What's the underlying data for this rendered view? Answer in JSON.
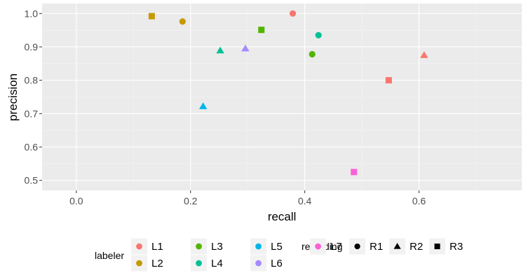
{
  "chart_data": {
    "type": "scatter",
    "title": "",
    "xlabel": "recall",
    "ylabel": "precision",
    "xlim": [
      -0.06,
      0.78
    ],
    "ylim": [
      0.47,
      1.03
    ],
    "xticks": [
      0.0,
      0.2,
      0.4,
      0.6
    ],
    "xtick_labels": [
      "0.0",
      "0.2",
      "0.4",
      "0.6"
    ],
    "yticks": [
      0.5,
      0.6,
      0.7,
      0.8,
      0.9,
      1.0
    ],
    "ytick_labels": [
      "0.5",
      "0.6",
      "0.7",
      "0.8",
      "0.9",
      "1.0"
    ],
    "grid": true,
    "legend_position": "bottom",
    "legends": {
      "color": {
        "title": "labeler",
        "entries": [
          {
            "name": "L1",
            "color": "#F8766D"
          },
          {
            "name": "L2",
            "color": "#C49A00"
          },
          {
            "name": "L3",
            "color": "#53B400"
          },
          {
            "name": "L4",
            "color": "#00C094"
          },
          {
            "name": "L5",
            "color": "#00B6EB"
          },
          {
            "name": "L6",
            "color": "#A58AFF"
          },
          {
            "name": "L7",
            "color": "#FB61D7"
          }
        ]
      },
      "shape": {
        "title": "recording",
        "entries": [
          {
            "name": "R1",
            "shape": "circle"
          },
          {
            "name": "R2",
            "shape": "triangle"
          },
          {
            "name": "R3",
            "shape": "square"
          }
        ]
      }
    },
    "points": [
      {
        "labeler": "L1",
        "recording": "R1",
        "x": 0.379,
        "y": 1.0
      },
      {
        "labeler": "L1",
        "recording": "R2",
        "x": 0.609,
        "y": 0.875
      },
      {
        "labeler": "L1",
        "recording": "R3",
        "x": 0.547,
        "y": 0.8
      },
      {
        "labeler": "L2",
        "recording": "R1",
        "x": 0.186,
        "y": 0.976
      },
      {
        "labeler": "L2",
        "recording": "R3",
        "x": 0.132,
        "y": 0.992
      },
      {
        "labeler": "L3",
        "recording": "R1",
        "x": 0.413,
        "y": 0.878
      },
      {
        "labeler": "L3",
        "recording": "R3",
        "x": 0.324,
        "y": 0.951
      },
      {
        "labeler": "L4",
        "recording": "R1",
        "x": 0.424,
        "y": 0.935
      },
      {
        "labeler": "L4",
        "recording": "R2",
        "x": 0.252,
        "y": 0.889
      },
      {
        "labeler": "L5",
        "recording": "R2",
        "x": 0.222,
        "y": 0.722
      },
      {
        "labeler": "L6",
        "recording": "R2",
        "x": 0.296,
        "y": 0.895
      },
      {
        "labeler": "L7",
        "recording": "R3",
        "x": 0.486,
        "y": 0.525
      }
    ]
  },
  "colors": {
    "panel_background": "#EBEBEB",
    "grid_major": "#FFFFFF",
    "grid_minor": "#F4F4F4",
    "tick_mark": "#333333",
    "legend_key_background": "#F2F2F2"
  }
}
